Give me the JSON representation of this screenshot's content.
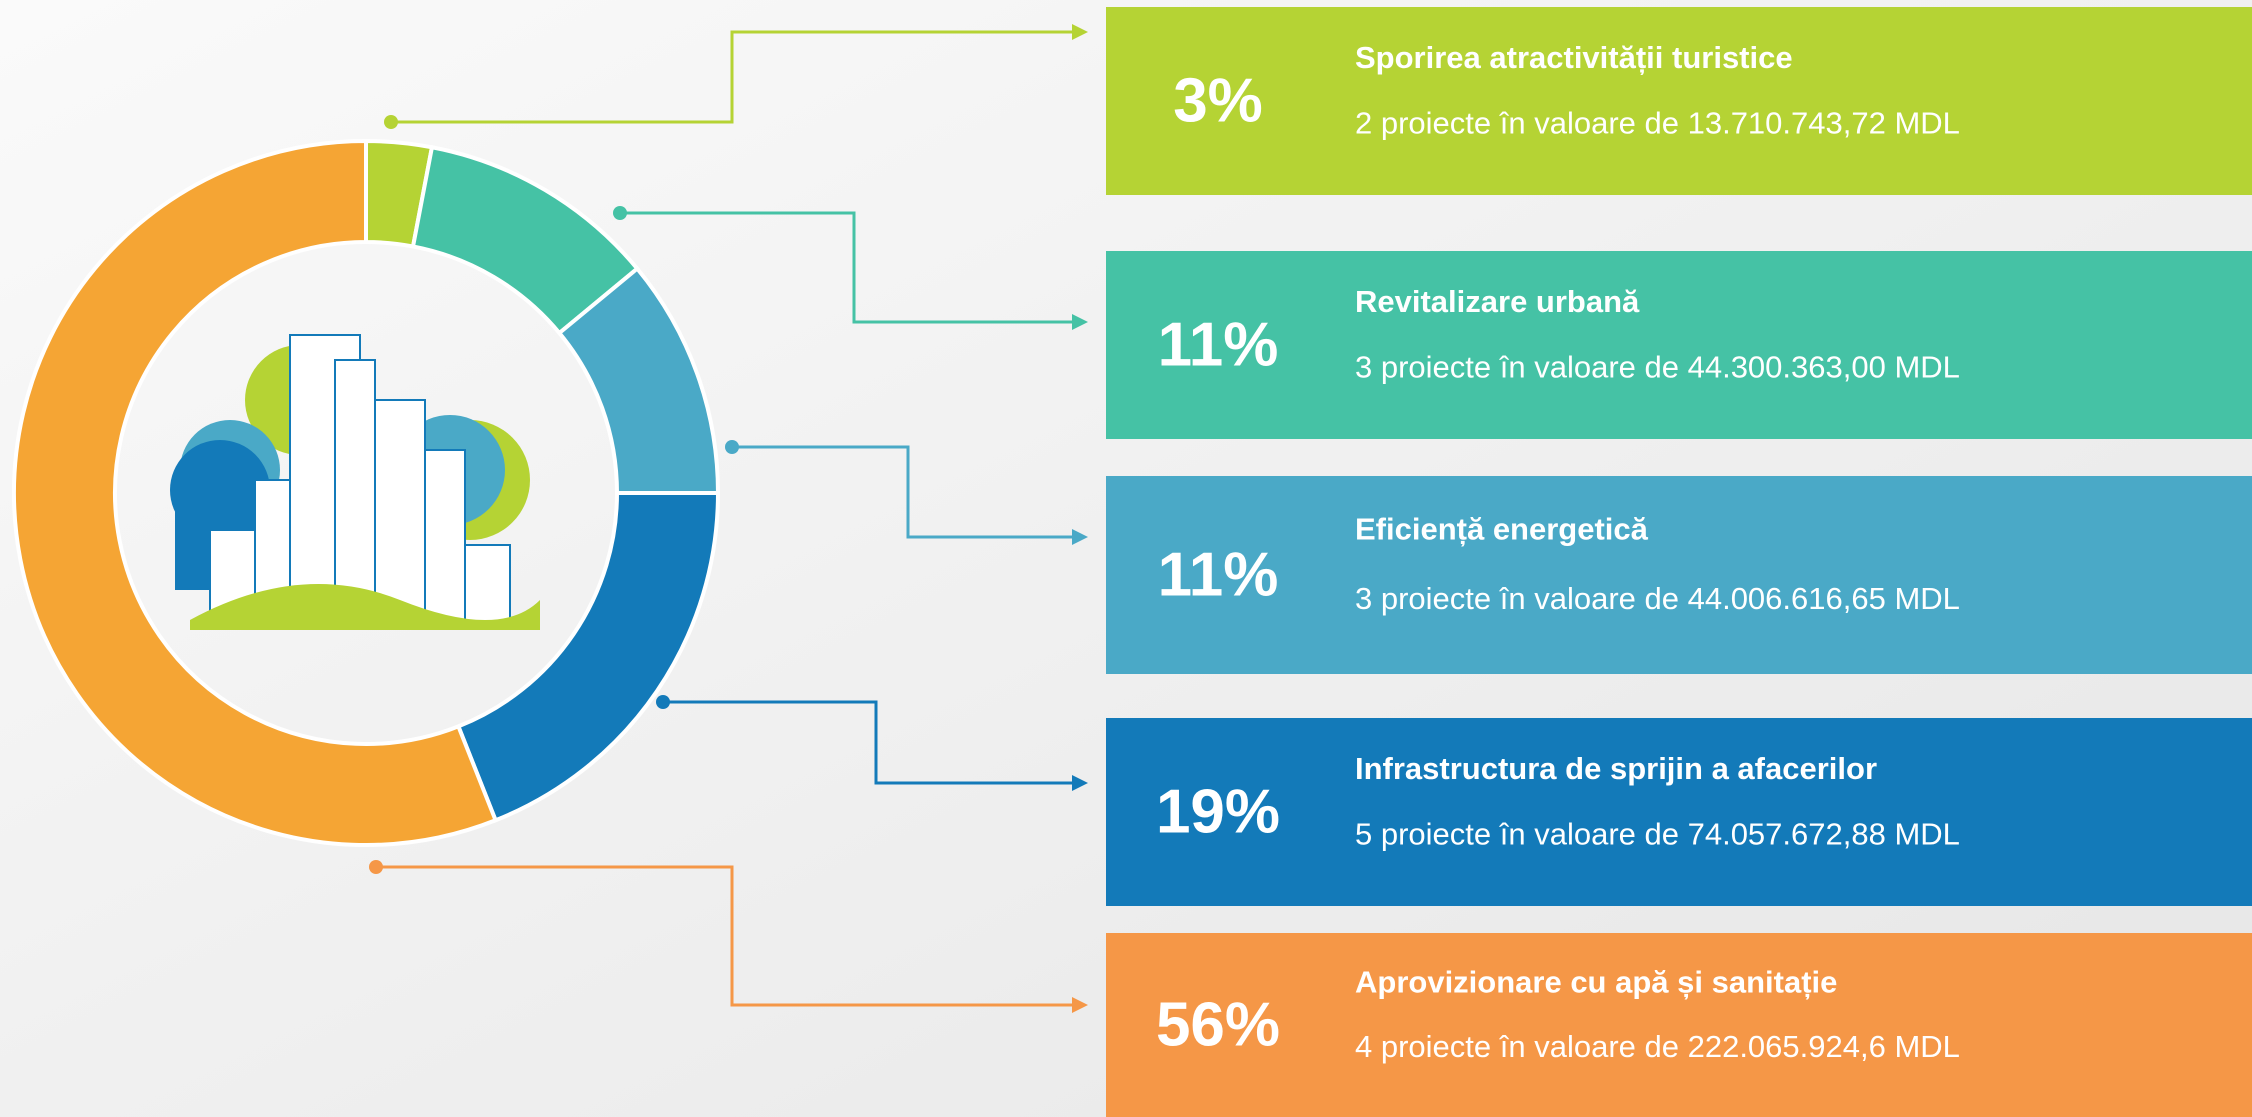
{
  "chart_data": {
    "type": "pie",
    "categories": [
      "Sporirea atractivității turistice",
      "Revitalizare urbană",
      "Eficiență energetică",
      "Infrastructura de sprijin a afacerilor",
      "Aprovizionare cu apă și sanitație"
    ],
    "values": [
      3,
      11,
      11,
      19,
      56
    ],
    "value_labels": [
      "3%",
      "11%",
      "11%",
      "19%",
      "56%"
    ],
    "details": [
      "2 proiecte în valoare de 13.710.743,72 MDL",
      "3 proiecte în valoare de 44.300.363,00 MDL",
      "3 proiecte în valoare de 44.006.616,65 MDL",
      "5 proiecte în valoare de 74.057.672,88 MDL",
      "4 proiecte în valoare de 222.065.924,6 MDL"
    ],
    "colors": [
      "#b5d334",
      "#45c2a5",
      "#4aa9c7",
      "#137ab9",
      "#f5a534"
    ]
  }
}
